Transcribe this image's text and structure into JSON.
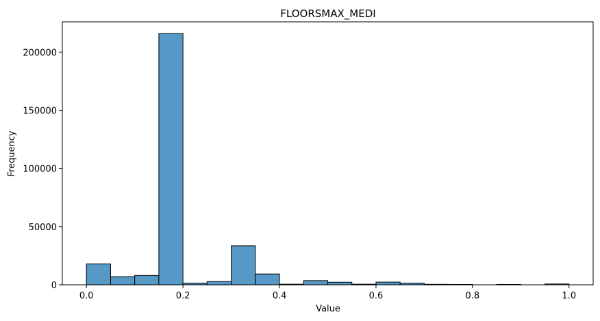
{
  "chart_data": {
    "type": "bar",
    "title": "FLOORSMAX_MEDI",
    "xlabel": "Value",
    "ylabel": "Frequency",
    "xlim": [
      -0.05,
      1.05
    ],
    "ylim": [
      0,
      226000
    ],
    "x_ticks": [
      0.0,
      0.2,
      0.4,
      0.6,
      0.8,
      1.0
    ],
    "x_tick_labels": [
      "0.0",
      "0.2",
      "0.4",
      "0.6",
      "0.8",
      "1.0"
    ],
    "y_ticks": [
      0,
      50000,
      100000,
      150000,
      200000
    ],
    "y_tick_labels": [
      "0",
      "50000",
      "100000",
      "150000",
      "200000"
    ],
    "bar_color": "#5799c6",
    "edge_color": "#000000",
    "bins": [
      {
        "start": 0.0,
        "end": 0.05,
        "value": 18000
      },
      {
        "start": 0.05,
        "end": 0.1,
        "value": 7000
      },
      {
        "start": 0.1,
        "end": 0.15,
        "value": 8000
      },
      {
        "start": 0.15,
        "end": 0.2,
        "value": 216000
      },
      {
        "start": 0.2,
        "end": 0.25,
        "value": 1500
      },
      {
        "start": 0.25,
        "end": 0.3,
        "value": 2800
      },
      {
        "start": 0.3,
        "end": 0.35,
        "value": 33500
      },
      {
        "start": 0.35,
        "end": 0.4,
        "value": 9300
      },
      {
        "start": 0.4,
        "end": 0.45,
        "value": 500
      },
      {
        "start": 0.45,
        "end": 0.5,
        "value": 3600
      },
      {
        "start": 0.5,
        "end": 0.55,
        "value": 2200
      },
      {
        "start": 0.55,
        "end": 0.6,
        "value": 500
      },
      {
        "start": 0.6,
        "end": 0.65,
        "value": 2300
      },
      {
        "start": 0.65,
        "end": 0.7,
        "value": 1500
      },
      {
        "start": 0.7,
        "end": 0.75,
        "value": 400
      },
      {
        "start": 0.75,
        "end": 0.8,
        "value": 300
      },
      {
        "start": 0.8,
        "end": 0.85,
        "value": 0
      },
      {
        "start": 0.85,
        "end": 0.9,
        "value": 300
      },
      {
        "start": 0.9,
        "end": 0.95,
        "value": 0
      },
      {
        "start": 0.95,
        "end": 1.0,
        "value": 700
      }
    ]
  }
}
